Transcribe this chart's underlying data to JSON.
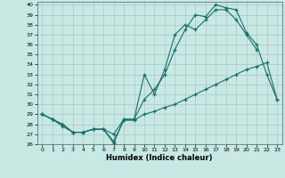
{
  "xlabel": "Humidex (Indice chaleur)",
  "xlim": [
    -0.5,
    23.5
  ],
  "ylim": [
    26,
    40.3
  ],
  "xticks": [
    0,
    1,
    2,
    3,
    4,
    5,
    6,
    7,
    8,
    9,
    10,
    11,
    12,
    13,
    14,
    15,
    16,
    17,
    18,
    19,
    20,
    21,
    22,
    23
  ],
  "yticks": [
    26,
    27,
    28,
    29,
    30,
    31,
    32,
    33,
    34,
    35,
    36,
    37,
    38,
    39,
    40
  ],
  "bg_color": "#c8e8e4",
  "grid_color": "#a8c8c4",
  "line_color": "#1a6e6a",
  "line1_x": [
    0,
    1,
    2,
    3,
    4,
    5,
    6,
    7,
    8,
    9,
    10,
    11,
    12,
    13,
    14,
    15,
    16,
    17,
    18,
    19,
    20,
    21
  ],
  "line1_y": [
    29.0,
    28.5,
    28.0,
    27.2,
    27.2,
    27.5,
    27.5,
    26.1,
    28.5,
    28.5,
    33.0,
    31.0,
    33.5,
    37.0,
    38.0,
    37.5,
    38.5,
    39.5,
    39.5,
    38.5,
    37.0,
    35.5
  ],
  "line2_x": [
    0,
    1,
    2,
    3,
    4,
    5,
    6,
    7,
    8,
    9,
    10,
    11,
    12,
    13,
    14,
    15,
    16,
    17,
    18,
    19,
    20,
    21,
    22,
    23
  ],
  "line2_y": [
    29.0,
    28.5,
    28.0,
    27.2,
    27.2,
    27.5,
    27.5,
    27.0,
    28.5,
    28.5,
    30.5,
    31.5,
    33.0,
    35.5,
    37.5,
    39.0,
    38.8,
    40.0,
    39.7,
    39.5,
    37.2,
    36.0,
    33.0,
    30.5
  ],
  "line3_x": [
    0,
    1,
    2,
    3,
    4,
    5,
    6,
    7,
    8,
    9,
    10,
    11,
    12,
    13,
    14,
    15,
    16,
    17,
    18,
    19,
    20,
    21,
    22,
    23
  ],
  "line3_y": [
    29.0,
    28.5,
    27.8,
    27.2,
    27.2,
    27.5,
    27.5,
    26.3,
    28.4,
    28.4,
    29.0,
    29.3,
    29.7,
    30.0,
    30.5,
    31.0,
    31.5,
    32.0,
    32.5,
    33.0,
    33.5,
    33.8,
    34.2,
    30.5
  ]
}
